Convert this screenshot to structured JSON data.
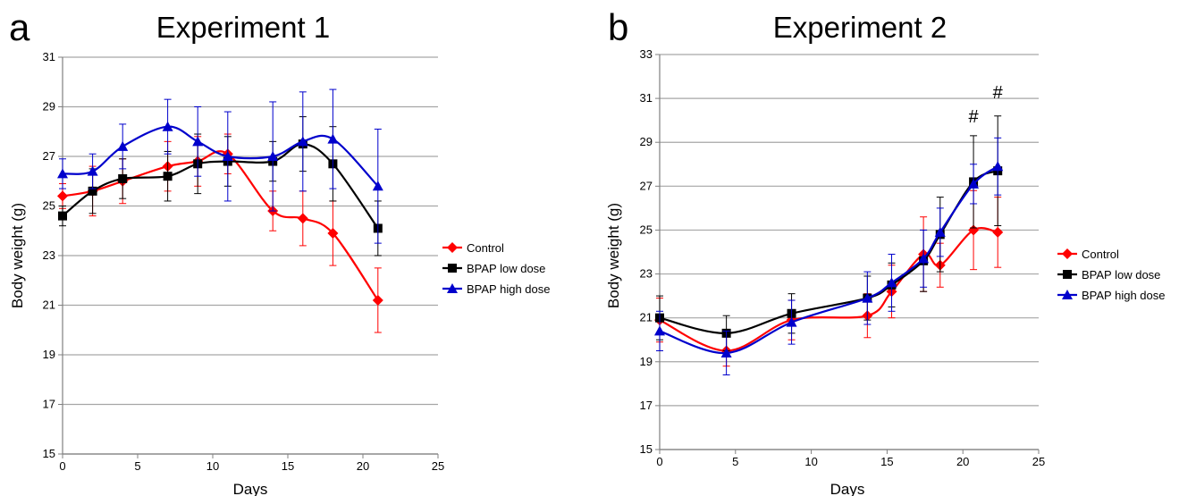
{
  "chart_data": [
    {
      "type": "line",
      "panel_label": "a",
      "title": "Experiment 1",
      "xlabel": "Days",
      "ylabel": "Body weight (g)",
      "xlim": [
        0,
        25
      ],
      "ylim": [
        15,
        31
      ],
      "xticks": [
        0,
        5,
        10,
        15,
        20,
        25
      ],
      "yticks": [
        15,
        17,
        19,
        21,
        23,
        25,
        27,
        29,
        31
      ],
      "grid": "horizontal",
      "legend_position": "right",
      "x": [
        0,
        2,
        4,
        7,
        9,
        11,
        14,
        16,
        18,
        21
      ],
      "series": [
        {
          "name": "Control",
          "color": "#ff0000",
          "marker": "diamond",
          "values": [
            25.4,
            25.6,
            26.0,
            26.6,
            26.8,
            27.1,
            24.8,
            24.5,
            23.9,
            21.2
          ],
          "errors": [
            0.5,
            1.0,
            0.9,
            1.0,
            1.0,
            0.8,
            0.8,
            1.1,
            1.3,
            1.3
          ]
        },
        {
          "name": "BPAP low dose",
          "color": "#000000",
          "marker": "square",
          "values": [
            24.6,
            25.6,
            26.1,
            26.2,
            26.7,
            26.8,
            26.8,
            27.5,
            26.7,
            24.1
          ],
          "errors": [
            0.4,
            0.9,
            0.8,
            1.0,
            1.2,
            1.0,
            0.8,
            1.1,
            1.5,
            1.1
          ]
        },
        {
          "name": "BPAP high dose",
          "color": "#0000cc",
          "marker": "triangle",
          "values": [
            26.3,
            26.4,
            27.4,
            28.2,
            27.6,
            27.0,
            27.0,
            27.6,
            27.7,
            25.8
          ],
          "errors": [
            0.6,
            0.7,
            0.9,
            1.1,
            1.4,
            1.8,
            2.2,
            2.0,
            2.0,
            2.3
          ]
        }
      ]
    },
    {
      "type": "line",
      "panel_label": "b",
      "title": "Experiment 2",
      "xlabel": "Days",
      "ylabel": "Body weight (g)",
      "xlim": [
        0,
        25
      ],
      "ylim": [
        15,
        33
      ],
      "xticks": [
        0,
        5,
        10,
        15,
        20,
        25
      ],
      "yticks": [
        15,
        17,
        19,
        21,
        23,
        25,
        27,
        29,
        31,
        33
      ],
      "grid": "horizontal",
      "legend_position": "right",
      "x": [
        0,
        4.4,
        8.7,
        13.7,
        15.3,
        17.4,
        18.5,
        20.7,
        22.3
      ],
      "series": [
        {
          "name": "Control",
          "color": "#ff0000",
          "marker": "diamond",
          "values": [
            20.9,
            19.5,
            20.9,
            21.1,
            22.2,
            23.9,
            23.4,
            25.0,
            24.9
          ],
          "errors": [
            1.0,
            0.7,
            0.9,
            1.0,
            1.2,
            1.7,
            1.0,
            1.8,
            1.6
          ]
        },
        {
          "name": "BPAP low dose",
          "color": "#000000",
          "marker": "square",
          "values": [
            21.0,
            20.3,
            21.2,
            21.9,
            22.5,
            23.6,
            24.8,
            27.2,
            27.7
          ],
          "errors": [
            1.0,
            0.8,
            0.9,
            1.0,
            1.0,
            1.4,
            1.7,
            2.1,
            2.5
          ]
        },
        {
          "name": "BPAP high dose",
          "color": "#0000cc",
          "marker": "triangle",
          "values": [
            20.4,
            19.4,
            20.8,
            21.9,
            22.6,
            23.7,
            24.9,
            27.1,
            27.9
          ],
          "errors": [
            0.9,
            1.0,
            1.0,
            1.2,
            1.3,
            1.3,
            1.1,
            0.9,
            1.3
          ]
        }
      ],
      "annotations": [
        {
          "text": "#",
          "x": 20.7,
          "y": 29.9
        },
        {
          "text": "#",
          "x": 22.3,
          "y": 31.0
        }
      ]
    }
  ]
}
